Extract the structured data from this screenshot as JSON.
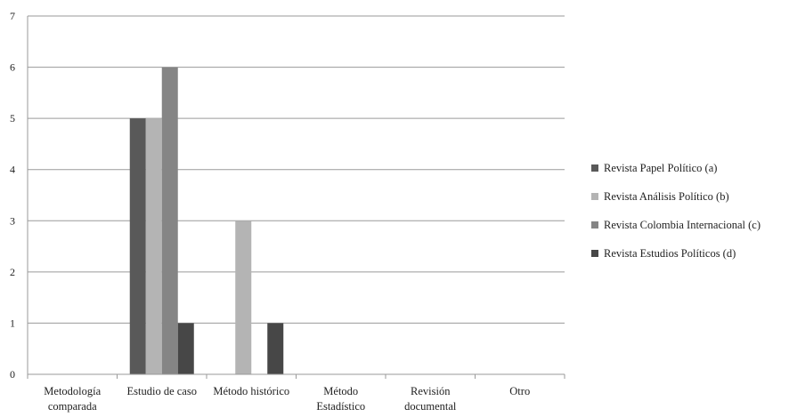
{
  "chart_data": {
    "type": "bar",
    "title": "",
    "xlabel": "",
    "ylabel": "",
    "ylim": [
      0,
      7
    ],
    "yticks": [
      0,
      1,
      2,
      3,
      4,
      5,
      6,
      7
    ],
    "grid": true,
    "legend_position": "right",
    "categories": [
      [
        "Metodología",
        "comparada"
      ],
      [
        "Estudio de caso"
      ],
      [
        "Método histórico"
      ],
      [
        "Método",
        "Estadístico"
      ],
      [
        "Revisión",
        "documental"
      ],
      [
        "Otro"
      ]
    ],
    "series": [
      {
        "name": "Revista Papel Político (a)",
        "color": "#595959",
        "values": [
          0,
          5,
          0,
          0,
          0,
          0
        ]
      },
      {
        "name": "Revista Análisis Político (b)",
        "color": "#b4b4b4",
        "values": [
          0,
          5,
          3,
          0,
          0,
          0
        ]
      },
      {
        "name": "Revista Colombia Internacional (c)",
        "color": "#858585",
        "values": [
          0,
          6,
          0,
          0,
          0,
          0
        ]
      },
      {
        "name": "Revista Estudios Políticos (d)",
        "color": "#474747",
        "values": [
          0,
          1,
          1,
          0,
          0,
          0
        ]
      }
    ]
  }
}
